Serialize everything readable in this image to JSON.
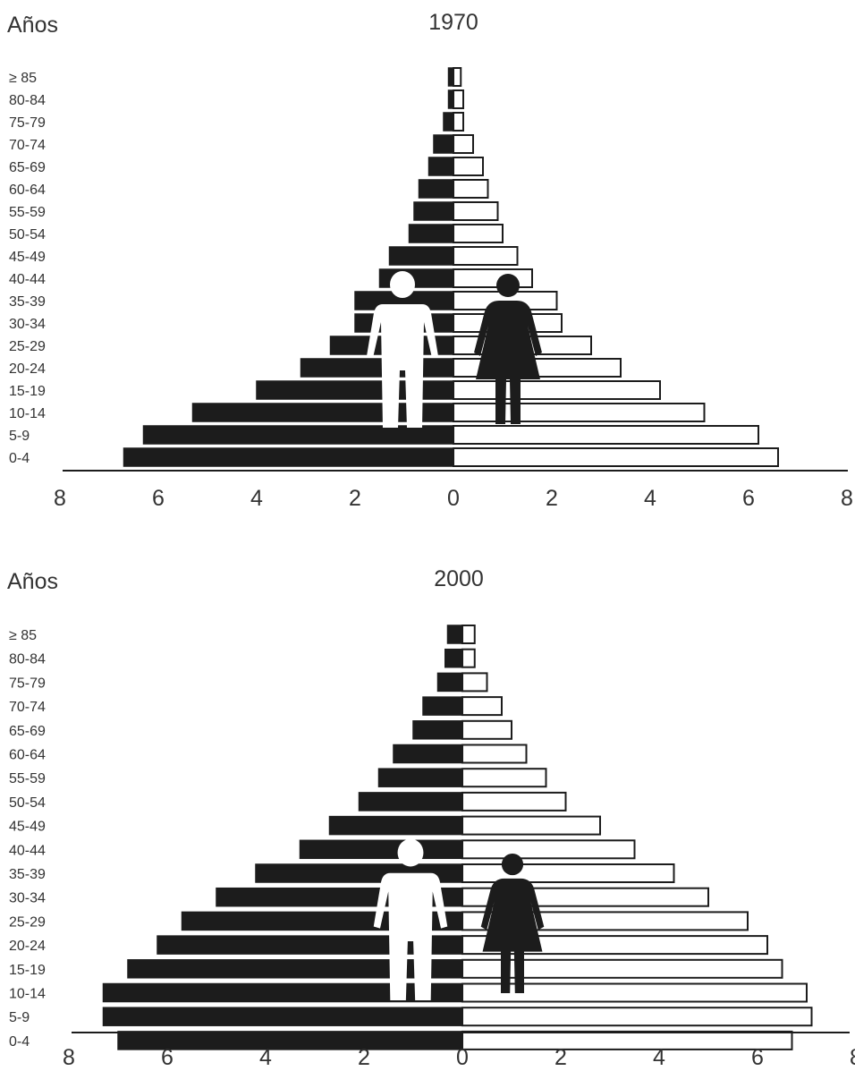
{
  "chart_data": [
    {
      "type": "bar",
      "orientation": "horizontal",
      "subtype": "population-pyramid",
      "title": "1970",
      "ylabel": "Años",
      "xlabel": "",
      "xlim": [
        -8,
        8
      ],
      "x_tick_labels": [
        "8",
        "6",
        "4",
        "2",
        "0",
        "2",
        "4",
        "6",
        "8"
      ],
      "categories": [
        "0-4",
        "5-9",
        "10-14",
        "15-19",
        "20-24",
        "25-29",
        "30-34",
        "35-39",
        "40-44",
        "45-49",
        "50-54",
        "55-59",
        "60-64",
        "65-69",
        "70-74",
        "75-79",
        "80-84",
        "≥ 85"
      ],
      "series": [
        {
          "values": [
            6.7,
            6.3,
            5.3,
            4.0,
            3.1,
            2.5,
            2.0,
            2.0,
            1.5,
            1.3,
            0.9,
            0.8,
            0.7,
            0.5,
            0.4,
            0.2,
            0.1,
            0.1
          ]
        },
        {
          "values": [
            6.6,
            6.2,
            5.1,
            4.2,
            3.4,
            2.8,
            2.2,
            2.1,
            1.6,
            1.3,
            1.0,
            0.9,
            0.7,
            0.6,
            0.4,
            0.2,
            0.2,
            0.15
          ]
        }
      ],
      "colors": {
        "male": "#1c1c1c",
        "female": "#ffffff",
        "outline": "#1c1c1c"
      },
      "icons": [
        "man-silhouette-icon",
        "woman-silhouette-icon"
      ]
    },
    {
      "type": "bar",
      "orientation": "horizontal",
      "subtype": "population-pyramid",
      "title": "2000",
      "ylabel": "Años",
      "xlabel": "",
      "xlim": [
        -8,
        8
      ],
      "x_tick_labels": [
        "8",
        "6",
        "4",
        "2",
        "0",
        "2",
        "4",
        "6",
        "8"
      ],
      "categories": [
        "0-4",
        "5-9",
        "10-14",
        "15-19",
        "20-24",
        "25-29",
        "30-34",
        "35-39",
        "40-44",
        "45-49",
        "50-54",
        "55-59",
        "60-64",
        "65-69",
        "70-74",
        "75-79",
        "80-84",
        "≥ 85"
      ],
      "series": [
        {
          "values": [
            7.0,
            7.3,
            7.3,
            6.8,
            6.2,
            5.7,
            5.0,
            4.2,
            3.3,
            2.7,
            2.1,
            1.7,
            1.4,
            1.0,
            0.8,
            0.5,
            0.35,
            0.3
          ]
        },
        {
          "values": [
            6.7,
            7.1,
            7.0,
            6.5,
            6.2,
            5.8,
            5.0,
            4.3,
            3.5,
            2.8,
            2.1,
            1.7,
            1.3,
            1.0,
            0.8,
            0.5,
            0.25,
            0.25
          ]
        }
      ],
      "colors": {
        "male": "#1c1c1c",
        "female": "#ffffff",
        "outline": "#1c1c1c"
      },
      "icons": [
        "man-silhouette-icon",
        "woman-silhouette-icon"
      ]
    }
  ]
}
